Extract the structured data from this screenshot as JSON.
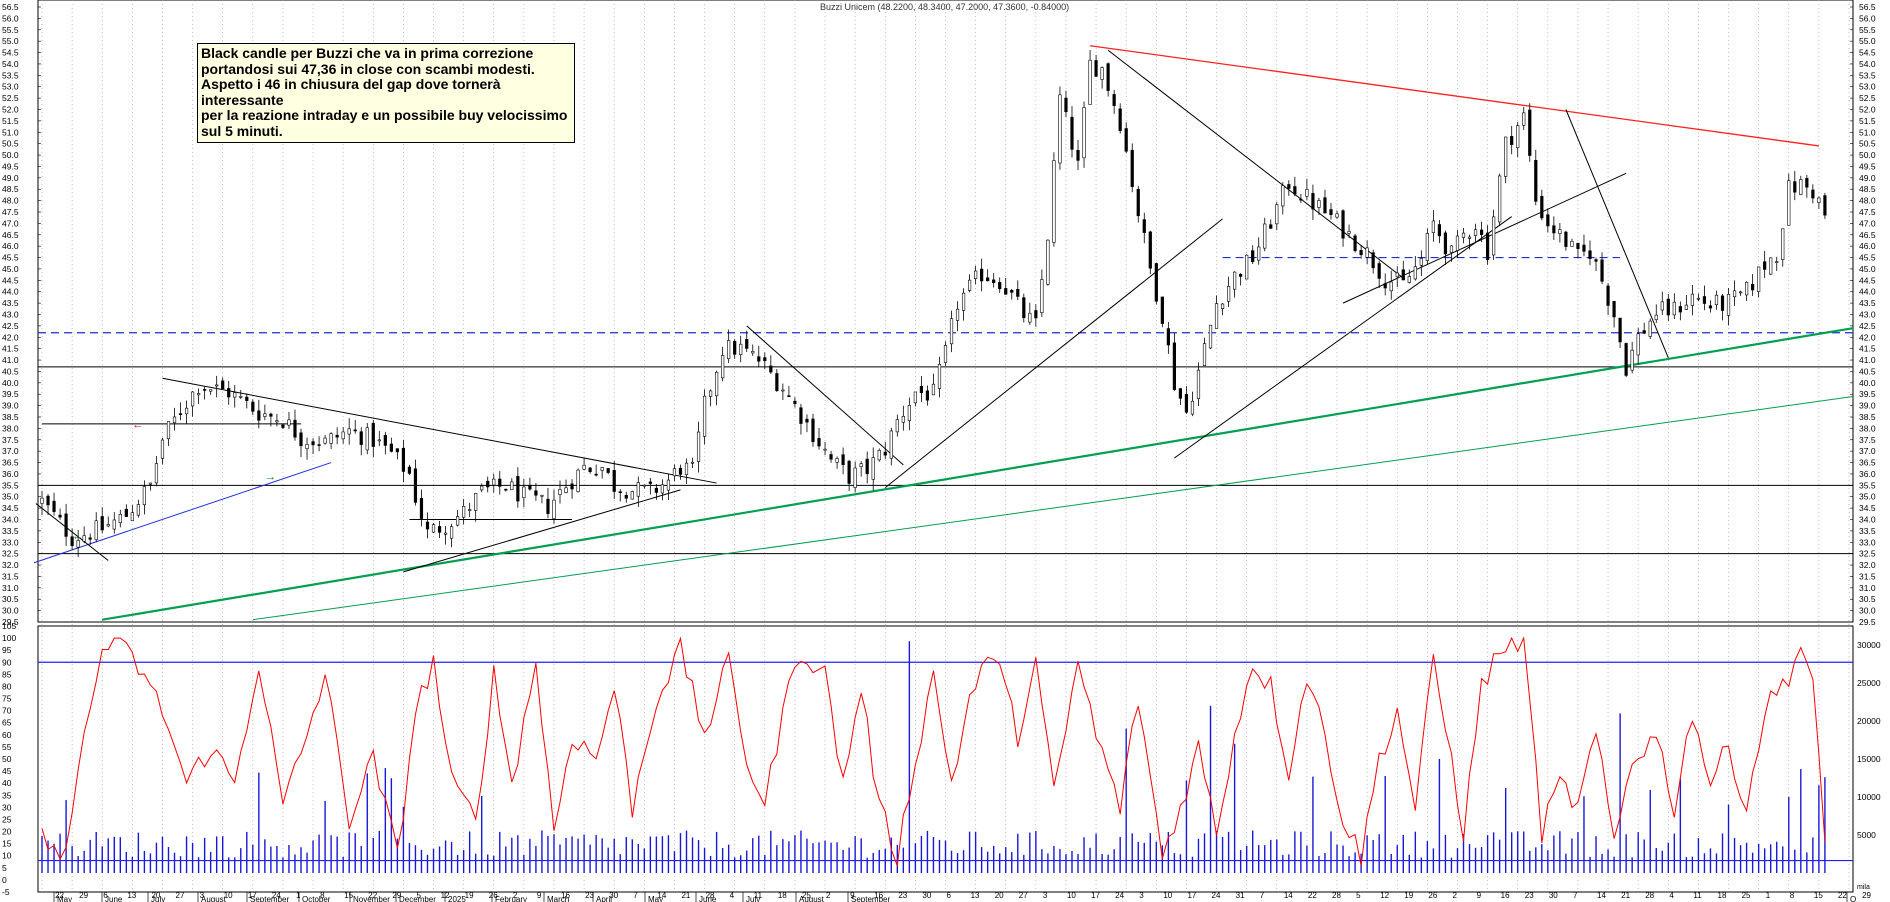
{
  "chart_data": [
    {
      "type": "candlestick",
      "title": "Buzzi Unicem (48.2200, 48.3400, 47.2000, 47.3600, -0.84000)",
      "annotation": "Black candle per Buzzi che va in prima correzione portandosi sui 47,36 in close con scambi modesti. Aspetto i 46 in chiusura del gap dove tornerà interessante per la reazione intraday e un possibile buy velocissimo sul 5 minuti.",
      "annotation_lines": [
        "Black candle per Buzzi che va in prima correzione",
        "portandosi sui 47,36 in close con scambi modesti.",
        "Aspetto i 46 in chiusura del gap dove tornerà interessante",
        "per la reazione intraday e un possibile buy velocissimo",
        "sul 5 minuti."
      ],
      "last_candle": {
        "open": 48.22,
        "high": 48.34,
        "low": 47.2,
        "close": 47.36,
        "change": -0.84
      },
      "ylim": [
        29.5,
        56.5
      ],
      "ytick_step": 0.5,
      "grid": "vertical dotted",
      "price_path": [
        [
          34.8,
          0
        ],
        [
          33.2,
          5
        ],
        [
          33.6,
          10
        ],
        [
          34.2,
          14
        ],
        [
          35.5,
          18
        ],
        [
          37.5,
          20
        ],
        [
          38.8,
          23
        ],
        [
          39.9,
          26
        ],
        [
          39.6,
          31
        ],
        [
          38.7,
          36
        ],
        [
          38.4,
          40
        ],
        [
          37.6,
          43
        ],
        [
          37.4,
          47
        ],
        [
          37.9,
          51
        ],
        [
          37.5,
          55
        ],
        [
          36.9,
          58
        ],
        [
          36.0,
          61
        ],
        [
          35.0,
          62
        ],
        [
          33.4,
          64
        ],
        [
          33.8,
          67
        ],
        [
          34.3,
          70
        ],
        [
          35.2,
          73
        ],
        [
          35.5,
          77
        ],
        [
          35.0,
          80
        ],
        [
          34.6,
          84
        ],
        [
          35.5,
          87
        ],
        [
          36.3,
          90
        ],
        [
          36.3,
          93
        ],
        [
          35.5,
          95
        ],
        [
          35.3,
          98
        ],
        [
          35.2,
          101
        ],
        [
          35.7,
          104
        ],
        [
          36.3,
          106
        ],
        [
          36.1,
          108
        ],
        [
          39.0,
          110
        ],
        [
          41.5,
          113
        ],
        [
          41.5,
          116
        ],
        [
          41.0,
          119
        ],
        [
          39.8,
          123
        ],
        [
          38.6,
          126
        ],
        [
          37.4,
          129
        ],
        [
          36.6,
          131
        ],
        [
          35.9,
          134
        ],
        [
          36.2,
          137
        ],
        [
          37.1,
          140
        ],
        [
          38.3,
          142
        ],
        [
          39.6,
          145
        ],
        [
          39.5,
          148
        ],
        [
          41.3,
          150
        ],
        [
          43.5,
          152
        ],
        [
          44.8,
          156
        ],
        [
          44.5,
          159
        ],
        [
          43.8,
          161
        ],
        [
          43.0,
          163
        ],
        [
          42.5,
          165
        ],
        [
          46.5,
          167
        ],
        [
          52.5,
          169
        ],
        [
          49.5,
          172
        ],
        [
          54.0,
          174
        ],
        [
          53.8,
          176
        ],
        [
          51.5,
          179
        ],
        [
          47.5,
          182
        ],
        [
          45.0,
          184
        ],
        [
          43.0,
          186
        ],
        [
          40.0,
          188
        ],
        [
          38.7,
          190
        ],
        [
          40.5,
          192
        ],
        [
          43.5,
          195
        ],
        [
          44.7,
          198
        ],
        [
          45.5,
          201
        ],
        [
          47.1,
          204
        ],
        [
          48.8,
          207
        ],
        [
          48.1,
          210
        ],
        [
          47.3,
          214
        ],
        [
          46.5,
          217
        ],
        [
          45.7,
          220
        ],
        [
          44.6,
          223
        ],
        [
          44.3,
          226
        ],
        [
          45.4,
          229
        ],
        [
          47.0,
          231
        ],
        [
          45.6,
          234
        ],
        [
          46.5,
          236
        ],
        [
          47.0,
          238
        ],
        [
          45.8,
          240
        ],
        [
          50.5,
          243
        ],
        [
          51.7,
          246
        ],
        [
          48.0,
          248
        ],
        [
          47.0,
          250
        ],
        [
          46.2,
          253
        ],
        [
          45.5,
          255
        ],
        [
          45.8,
          257
        ],
        [
          44.5,
          259
        ],
        [
          43.0,
          261
        ],
        [
          40.7,
          263
        ],
        [
          42.0,
          265
        ],
        [
          43.1,
          268
        ],
        [
          43.2,
          271
        ],
        [
          43.8,
          274
        ],
        [
          43.4,
          277
        ],
        [
          43.5,
          280
        ],
        [
          44.0,
          283
        ],
        [
          45.2,
          286
        ],
        [
          45.7,
          288
        ],
        [
          48.5,
          290
        ],
        [
          48.7,
          292
        ],
        [
          48.4,
          294
        ],
        [
          47.5,
          296
        ]
      ],
      "path_note": "[price, approximate trading-day index] control points of the daily price path"
    },
    {
      "type": "line",
      "series": [
        {
          "values_note": "oscillator 0-100 (red)",
          "range": [
            0,
            100
          ]
        }
      ],
      "ylim": [
        -5,
        105
      ],
      "ytick_step": 5,
      "reference_lines": [
        90,
        8
      ],
      "oscillator_path": [
        [
          20,
          0
        ],
        [
          5,
          3
        ],
        [
          45,
          6
        ],
        [
          70,
          8
        ],
        [
          95,
          10
        ],
        [
          100,
          12
        ],
        [
          88,
          16
        ],
        [
          70,
          20
        ],
        [
          40,
          24
        ],
        [
          55,
          28
        ],
        [
          40,
          32
        ],
        [
          90,
          36
        ],
        [
          30,
          40
        ],
        [
          60,
          44
        ],
        [
          85,
          47
        ],
        [
          25,
          51
        ],
        [
          50,
          55
        ],
        [
          10,
          59
        ],
        [
          70,
          62
        ],
        [
          90,
          65
        ],
        [
          40,
          68
        ],
        [
          25,
          72
        ],
        [
          85,
          75
        ],
        [
          40,
          78
        ],
        [
          90,
          82
        ],
        [
          20,
          85
        ],
        [
          60,
          88
        ],
        [
          50,
          92
        ],
        [
          80,
          95
        ],
        [
          30,
          98
        ],
        [
          75,
          102
        ],
        [
          95,
          106
        ],
        [
          60,
          110
        ],
        [
          90,
          114
        ],
        [
          50,
          117
        ],
        [
          30,
          120
        ],
        [
          70,
          123
        ],
        [
          95,
          126
        ],
        [
          85,
          130
        ],
        [
          40,
          133
        ],
        [
          80,
          136
        ],
        [
          30,
          139
        ],
        [
          10,
          142
        ],
        [
          50,
          145
        ],
        [
          85,
          148
        ],
        [
          40,
          151
        ],
        [
          75,
          154
        ],
        [
          95,
          158
        ],
        [
          60,
          162
        ],
        [
          90,
          165
        ],
        [
          35,
          168
        ],
        [
          90,
          172
        ],
        [
          60,
          175
        ],
        [
          30,
          179
        ],
        [
          75,
          182
        ],
        [
          10,
          186
        ],
        [
          30,
          189
        ],
        [
          55,
          192
        ],
        [
          20,
          195
        ],
        [
          60,
          198
        ],
        [
          90,
          201
        ],
        [
          80,
          204
        ],
        [
          45,
          207
        ],
        [
          85,
          210
        ],
        [
          60,
          213
        ],
        [
          25,
          216
        ],
        [
          10,
          219
        ],
        [
          50,
          222
        ],
        [
          70,
          225
        ],
        [
          30,
          228
        ],
        [
          90,
          231
        ],
        [
          50,
          234
        ],
        [
          20,
          236
        ],
        [
          80,
          239
        ],
        [
          95,
          242
        ],
        [
          100,
          246
        ],
        [
          20,
          249
        ],
        [
          40,
          252
        ],
        [
          30,
          255
        ],
        [
          60,
          258
        ],
        [
          15,
          261
        ],
        [
          50,
          264
        ],
        [
          60,
          268
        ],
        [
          30,
          271
        ],
        [
          70,
          274
        ],
        [
          40,
          277
        ],
        [
          55,
          280
        ],
        [
          30,
          283
        ],
        [
          70,
          286
        ],
        [
          85,
          290
        ],
        [
          97,
          292
        ],
        [
          80,
          294
        ],
        [
          15,
          296
        ]
      ]
    },
    {
      "type": "bar",
      "series": [
        {
          "values_note": "volume (blue bars)"
        }
      ],
      "ylim": [
        -2500,
        32500
      ],
      "yticks": [
        5000,
        10000,
        15000,
        20000,
        25000,
        30000
      ],
      "spikes": [
        [
          30500,
          144
        ],
        [
          19000,
          180
        ],
        [
          22000,
          194
        ],
        [
          17000,
          198
        ],
        [
          15000,
          232
        ],
        [
          21000,
          262
        ],
        [
          10000,
          290
        ],
        [
          9000,
          280
        ]
      ],
      "typical_volume": 4000
    }
  ],
  "x_axis": {
    "months": [
      "May",
      "June",
      "July",
      "August",
      "September",
      "October",
      "November",
      "December",
      "2025",
      "February",
      "March",
      "April",
      "May",
      "June",
      "July",
      "August",
      "September",
      "O"
    ],
    "days": [
      "22",
      "29",
      "6",
      "13",
      "20",
      "27",
      "3",
      "10",
      "17",
      "24",
      "1",
      "8",
      "15",
      "22",
      "29",
      "5",
      "12",
      "19",
      "26",
      "2",
      "9",
      "16",
      "23",
      "30",
      "7",
      "14",
      "21",
      "28",
      "4",
      "11",
      "18",
      "25",
      "2",
      "9",
      "16",
      "23",
      "30",
      "6",
      "13",
      "20",
      "27",
      "3",
      "10",
      "17",
      "24",
      "3",
      "10",
      "17",
      "24",
      "31",
      "7",
      "14",
      "22",
      "28",
      "5",
      "12",
      "19",
      "26",
      "2",
      "9",
      "16",
      "23",
      "30",
      "7",
      "14",
      "21",
      "28",
      "4",
      "11",
      "18",
      "25",
      "1",
      "8",
      "15",
      "22",
      "29"
    ]
  },
  "colors": {
    "candle": "#000000",
    "trend_red": "#ff2020",
    "trend_green": "#00a050",
    "trend_blue": "#2030e0",
    "dashed_blue": "#1f2fd0",
    "oscillator": "#ff0000",
    "volume": "#1818d8",
    "reference_line": "#2020ff"
  },
  "unit_label": "mila"
}
